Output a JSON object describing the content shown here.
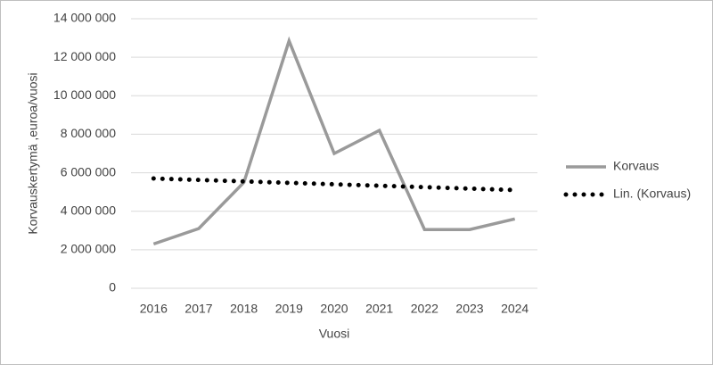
{
  "chart_data": {
    "type": "line",
    "y_label": "Korvauskertymä ,euroa/vuosi",
    "x_label": "Vuosi",
    "categories": [
      "2016",
      "2017",
      "2018",
      "2019",
      "2020",
      "2021",
      "2022",
      "2023",
      "2024"
    ],
    "series": [
      {
        "name": "Korvaus",
        "color": "#9a9a9a",
        "values": [
          2300000,
          3100000,
          5500000,
          12850000,
          7000000,
          8200000,
          3050000,
          3050000,
          3600000
        ]
      },
      {
        "name": "Lin. (Korvaus)",
        "color": "#000000",
        "style": "dotted",
        "values": [
          5700000,
          5625000,
          5550000,
          5475000,
          5400000,
          5325000,
          5250000,
          5175000,
          5100000
        ]
      }
    ],
    "ylim": [
      0,
      14000000
    ],
    "yticks": [
      {
        "value": 0,
        "label": "0"
      },
      {
        "value": 2000000,
        "label": "2 000 000"
      },
      {
        "value": 4000000,
        "label": "4 000 000"
      },
      {
        "value": 6000000,
        "label": "6 000 000"
      },
      {
        "value": 8000000,
        "label": "8 000 000"
      },
      {
        "value": 10000000,
        "label": "10 000 000"
      },
      {
        "value": 12000000,
        "label": "12 000 000"
      },
      {
        "value": 14000000,
        "label": "14 000 000"
      }
    ],
    "grid": true,
    "legend": "right"
  }
}
